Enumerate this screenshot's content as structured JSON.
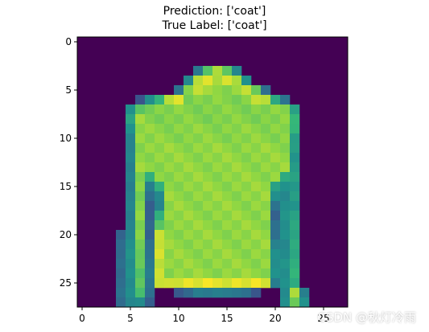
{
  "title_lines": [
    "Prediction: ['coat']",
    "True Label: ['coat']"
  ],
  "watermark": "CSDN @秋灯冷雨",
  "chart_data": {
    "type": "heatmap",
    "title": "Prediction: ['coat']\nTrue Label: ['coat']",
    "xlabel": "",
    "ylabel": "",
    "grid": false,
    "xlim": [
      -0.5,
      27.5
    ],
    "ylim": [
      27.5,
      -0.5
    ],
    "x_ticks": [
      0,
      5,
      10,
      15,
      20,
      25
    ],
    "y_ticks": [
      0,
      5,
      10,
      15,
      20,
      25
    ],
    "colormap": "viridis",
    "value_range": [
      0,
      1
    ],
    "image_shape": [
      28,
      28
    ],
    "rows": [
      [],
      [],
      [],
      [
        [
          12,
          12,
          0.5
        ],
        [
          13,
          13,
          0.82
        ],
        [
          14,
          14,
          0.9
        ],
        [
          15,
          15,
          0.82
        ],
        [
          16,
          16,
          0.55
        ]
      ],
      [
        [
          11,
          11,
          0.6
        ],
        [
          12,
          12,
          0.9
        ],
        [
          13,
          13,
          0.97
        ],
        [
          14,
          14,
          0.93
        ],
        [
          15,
          15,
          0.95
        ],
        [
          16,
          16,
          0.92
        ],
        [
          17,
          17,
          0.6
        ]
      ],
      [
        [
          10,
          10,
          0.5
        ],
        [
          11,
          11,
          0.85
        ],
        [
          12,
          12,
          0.95
        ],
        [
          13,
          16,
          0.88
        ],
        [
          17,
          17,
          0.95
        ],
        [
          18,
          18,
          0.8
        ],
        [
          19,
          19,
          0.45
        ]
      ],
      [
        [
          6,
          6,
          0.35
        ],
        [
          7,
          7,
          0.6
        ],
        [
          8,
          8,
          0.75
        ],
        [
          9,
          9,
          0.9
        ],
        [
          10,
          10,
          0.97
        ],
        [
          11,
          17,
          0.86
        ],
        [
          18,
          18,
          0.95
        ],
        [
          19,
          19,
          0.9
        ],
        [
          20,
          20,
          0.7
        ],
        [
          21,
          21,
          0.5
        ]
      ],
      [
        [
          5,
          5,
          0.6
        ],
        [
          6,
          6,
          0.8
        ],
        [
          7,
          21,
          0.86
        ],
        [
          22,
          22,
          0.7
        ]
      ],
      [
        [
          5,
          5,
          0.7
        ],
        [
          6,
          6,
          0.88
        ],
        [
          7,
          21,
          0.86
        ],
        [
          22,
          22,
          0.75
        ]
      ],
      [
        [
          5,
          5,
          0.62
        ],
        [
          6,
          6,
          0.88
        ],
        [
          7,
          21,
          0.87
        ],
        [
          22,
          22,
          0.72
        ]
      ],
      [
        [
          5,
          5,
          0.58
        ],
        [
          6,
          6,
          0.88
        ],
        [
          7,
          21,
          0.87
        ],
        [
          22,
          22,
          0.68
        ]
      ],
      [
        [
          5,
          5,
          0.55
        ],
        [
          6,
          6,
          0.88
        ],
        [
          7,
          21,
          0.88
        ],
        [
          22,
          22,
          0.66
        ]
      ],
      [
        [
          5,
          5,
          0.55
        ],
        [
          6,
          6,
          0.88
        ],
        [
          7,
          21,
          0.88
        ],
        [
          22,
          22,
          0.66
        ]
      ],
      [
        [
          5,
          5,
          0.55
        ],
        [
          6,
          6,
          0.88
        ],
        [
          7,
          21,
          0.88
        ],
        [
          22,
          22,
          0.66
        ]
      ],
      [
        [
          5,
          5,
          0.55
        ],
        [
          6,
          6,
          0.86
        ],
        [
          7,
          7,
          0.7
        ],
        [
          8,
          20,
          0.88
        ],
        [
          21,
          21,
          0.72
        ],
        [
          22,
          22,
          0.66
        ]
      ],
      [
        [
          5,
          5,
          0.55
        ],
        [
          6,
          6,
          0.86
        ],
        [
          7,
          7,
          0.55
        ],
        [
          8,
          8,
          0.7
        ],
        [
          9,
          19,
          0.88
        ],
        [
          20,
          20,
          0.7
        ],
        [
          21,
          21,
          0.62
        ],
        [
          22,
          22,
          0.66
        ]
      ],
      [
        [
          5,
          5,
          0.55
        ],
        [
          6,
          6,
          0.86
        ],
        [
          7,
          7,
          0.45
        ],
        [
          8,
          8,
          0.6
        ],
        [
          9,
          19,
          0.88
        ],
        [
          20,
          20,
          0.62
        ],
        [
          21,
          21,
          0.6
        ],
        [
          22,
          22,
          0.66
        ]
      ],
      [
        [
          5,
          5,
          0.55
        ],
        [
          6,
          6,
          0.86
        ],
        [
          7,
          7,
          0.4
        ],
        [
          8,
          8,
          0.55
        ],
        [
          9,
          19,
          0.88
        ],
        [
          20,
          20,
          0.45
        ],
        [
          21,
          21,
          0.62
        ],
        [
          22,
          22,
          0.66
        ]
      ],
      [
        [
          5,
          5,
          0.55
        ],
        [
          6,
          6,
          0.86
        ],
        [
          7,
          7,
          0.38
        ],
        [
          8,
          8,
          0.75
        ],
        [
          9,
          19,
          0.88
        ],
        [
          20,
          20,
          0.4
        ],
        [
          21,
          21,
          0.62
        ],
        [
          22,
          22,
          0.68
        ]
      ],
      [
        [
          5,
          5,
          0.55
        ],
        [
          6,
          6,
          0.86
        ],
        [
          7,
          7,
          0.4
        ],
        [
          8,
          8,
          0.8
        ],
        [
          9,
          19,
          0.88
        ],
        [
          20,
          20,
          0.45
        ],
        [
          21,
          21,
          0.62
        ],
        [
          22,
          22,
          0.68
        ]
      ],
      [
        [
          4,
          4,
          0.4
        ],
        [
          5,
          5,
          0.6
        ],
        [
          6,
          6,
          0.86
        ],
        [
          7,
          7,
          0.4
        ],
        [
          8,
          8,
          0.92
        ],
        [
          9,
          19,
          0.88
        ],
        [
          20,
          20,
          0.48
        ],
        [
          21,
          21,
          0.62
        ],
        [
          22,
          22,
          0.7
        ]
      ],
      [
        [
          4,
          4,
          0.42
        ],
        [
          5,
          5,
          0.62
        ],
        [
          6,
          6,
          0.86
        ],
        [
          7,
          7,
          0.45
        ],
        [
          8,
          8,
          0.95
        ],
        [
          9,
          19,
          0.88
        ],
        [
          20,
          20,
          0.55
        ],
        [
          21,
          21,
          0.6
        ],
        [
          22,
          22,
          0.7
        ]
      ],
      [
        [
          4,
          4,
          0.45
        ],
        [
          5,
          5,
          0.62
        ],
        [
          6,
          6,
          0.82
        ],
        [
          7,
          7,
          0.5
        ],
        [
          8,
          8,
          0.95
        ],
        [
          9,
          19,
          0.88
        ],
        [
          20,
          20,
          0.6
        ],
        [
          21,
          21,
          0.6
        ],
        [
          22,
          22,
          0.72
        ]
      ],
      [
        [
          4,
          4,
          0.45
        ],
        [
          5,
          5,
          0.62
        ],
        [
          6,
          6,
          0.8
        ],
        [
          7,
          7,
          0.5
        ],
        [
          8,
          8,
          0.95
        ],
        [
          9,
          19,
          0.88
        ],
        [
          20,
          20,
          0.62
        ],
        [
          21,
          21,
          0.62
        ],
        [
          22,
          22,
          0.72
        ]
      ],
      [
        [
          4,
          4,
          0.45
        ],
        [
          5,
          5,
          0.62
        ],
        [
          6,
          6,
          0.8
        ],
        [
          7,
          7,
          0.5
        ],
        [
          8,
          8,
          0.95
        ],
        [
          9,
          19,
          0.88
        ],
        [
          20,
          20,
          0.62
        ],
        [
          21,
          21,
          0.62
        ],
        [
          22,
          22,
          0.72
        ]
      ],
      [
        [
          4,
          4,
          0.45
        ],
        [
          5,
          5,
          0.62
        ],
        [
          6,
          6,
          0.8
        ],
        [
          7,
          7,
          0.5
        ],
        [
          8,
          8,
          0.92
        ],
        [
          9,
          9,
          0.95
        ],
        [
          10,
          18,
          0.97
        ],
        [
          19,
          19,
          0.95
        ],
        [
          20,
          20,
          0.55
        ],
        [
          21,
          21,
          0.62
        ],
        [
          22,
          22,
          0.72
        ]
      ],
      [
        [
          4,
          4,
          0.45
        ],
        [
          5,
          5,
          0.62
        ],
        [
          6,
          6,
          0.8
        ],
        [
          7,
          7,
          0.45
        ],
        [
          10,
          10,
          0.35
        ],
        [
          11,
          11,
          0.45
        ],
        [
          12,
          16,
          0.52
        ],
        [
          17,
          17,
          0.45
        ],
        [
          18,
          18,
          0.35
        ],
        [
          21,
          21,
          0.62
        ],
        [
          22,
          22,
          0.9
        ],
        [
          23,
          23,
          0.55
        ]
      ],
      [
        [
          4,
          4,
          0.45
        ],
        [
          5,
          5,
          0.55
        ],
        [
          6,
          6,
          0.6
        ],
        [
          7,
          7,
          0.4
        ],
        [
          21,
          21,
          0.62
        ],
        [
          22,
          22,
          0.85
        ],
        [
          23,
          23,
          0.62
        ]
      ]
    ]
  }
}
